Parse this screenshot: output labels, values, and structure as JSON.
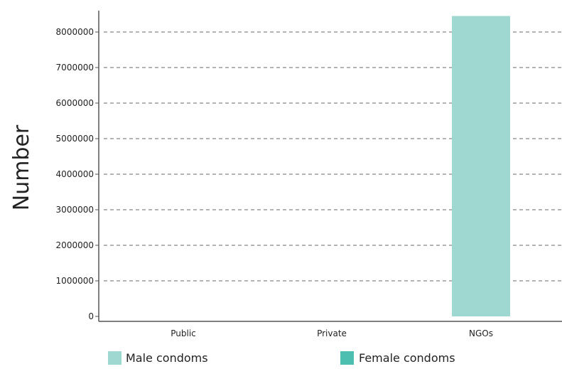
{
  "chart_data": {
    "type": "bar",
    "ylabel": "Number",
    "categories": [
      "Public",
      "Private",
      "NGOs"
    ],
    "series": [
      {
        "name": "Male condoms",
        "values": [
          0,
          0,
          8450000
        ],
        "color": "#9fd8d0"
      },
      {
        "name": "Female condoms",
        "values": [
          0,
          0,
          0
        ],
        "color": "#4dbfb0"
      }
    ],
    "yticks": [
      0,
      1000000,
      2000000,
      3000000,
      4000000,
      5000000,
      6000000,
      7000000,
      8000000
    ],
    "ylim": [
      0,
      8600000
    ],
    "grid": true,
    "legend_position": "bottom"
  }
}
